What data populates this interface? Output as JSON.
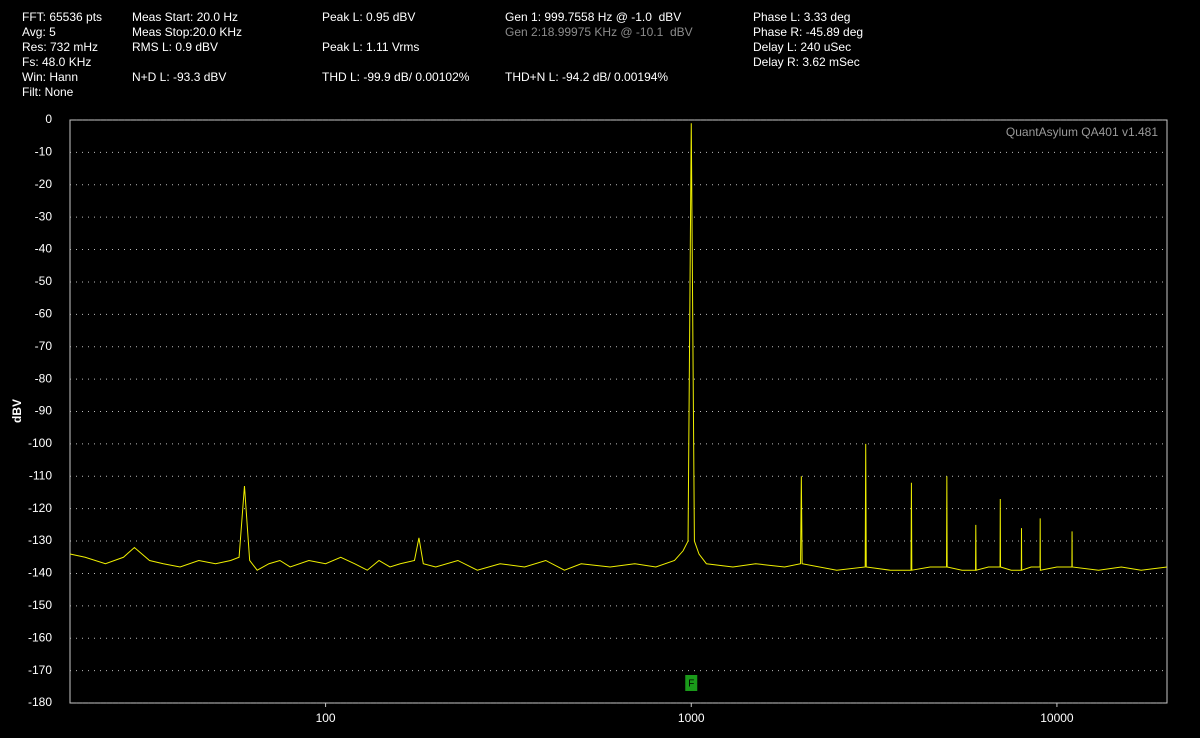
{
  "chart_data": {
    "type": "line",
    "header": [
      "FFT: 65536 pts",
      "Avg: 5",
      "Res: 732 mHz",
      "Fs: 48.0 KHz",
      "Win: Hann",
      "Filt: None",
      "Meas Start: 20.0 Hz",
      "Meas Stop:20.0 KHz",
      "RMS L: 0.9 dBV",
      "N+D L: -93.3 dBV",
      "Peak L: 0.95 dBV",
      "Peak L: 1.11 Vrms",
      "THD L: -99.9 dB/ 0.00102%",
      "Gen 1: 999.7558 Hz @ -1.0  dBV",
      "Gen 2:18.99975 KHz @ -10.1  dBV",
      "THD+N L: -94.2 dB/ 0.00194%",
      "Phase L: 3.33 deg",
      "Phase R: -45.89 deg",
      "Delay L: 240 uSec",
      "Delay R: 3.62 mSec"
    ],
    "watermark": "QuantAsylum QA401 v1.481",
    "y_label": "dBV",
    "marker_label": "F",
    "x_log": true,
    "xlim": [
      20,
      20000
    ],
    "xticks": [
      100,
      1000,
      10000
    ],
    "ylim": [
      -180,
      0
    ],
    "yticks": [
      0,
      -10,
      -20,
      -30,
      -40,
      -50,
      -60,
      -70,
      -80,
      -90,
      -100,
      -110,
      -120,
      -130,
      -140,
      -150,
      -160,
      -170,
      -180
    ],
    "grid": true,
    "x": [
      20,
      22,
      25,
      28,
      30,
      33,
      36,
      40,
      45,
      50,
      55,
      58,
      60,
      62,
      65,
      70,
      75,
      80,
      90,
      100,
      110,
      120,
      130,
      140,
      150,
      160,
      175,
      180,
      185,
      200,
      230,
      260,
      300,
      350,
      400,
      450,
      500,
      600,
      700,
      800,
      900,
      950,
      980,
      1000,
      1020,
      1050,
      1100,
      1300,
      1500,
      1800,
      1990,
      2000,
      2010,
      2500,
      2990,
      3000,
      3010,
      3500,
      3990,
      4000,
      4010,
      4500,
      4990,
      5000,
      5010,
      5500,
      5990,
      6000,
      6010,
      6500,
      6990,
      7000,
      7010,
      7500,
      7990,
      8000,
      8010,
      8500,
      8990,
      9000,
      9010,
      10000,
      10990,
      11000,
      11010,
      13000,
      15000,
      17000,
      20000
    ],
    "series": [
      {
        "name": "L",
        "color": "#f0f000",
        "values": [
          -134,
          -135,
          -137,
          -135,
          -132,
          -136,
          -137,
          -138,
          -136,
          -137,
          -136,
          -135,
          -113,
          -136,
          -139,
          -137,
          -136,
          -138,
          -136,
          -137,
          -135,
          -137,
          -139,
          -136,
          -138,
          -137,
          -136,
          -129,
          -137,
          -138,
          -136,
          -139,
          -137,
          -138,
          -136,
          -139,
          -137,
          -138,
          -137,
          -138,
          -136,
          -133,
          -130,
          -1,
          -130,
          -134,
          -137,
          -138,
          -137,
          -138,
          -137,
          -110,
          -137,
          -139,
          -138,
          -100,
          -138,
          -139,
          -139,
          -112,
          -139,
          -138,
          -138,
          -110,
          -138,
          -139,
          -139,
          -125,
          -139,
          -138,
          -138,
          -117,
          -138,
          -139,
          -139,
          -126,
          -139,
          -138,
          -138,
          -123,
          -139,
          -138,
          -138,
          -127,
          -138,
          -139,
          -138,
          -139,
          -138
        ]
      }
    ]
  }
}
